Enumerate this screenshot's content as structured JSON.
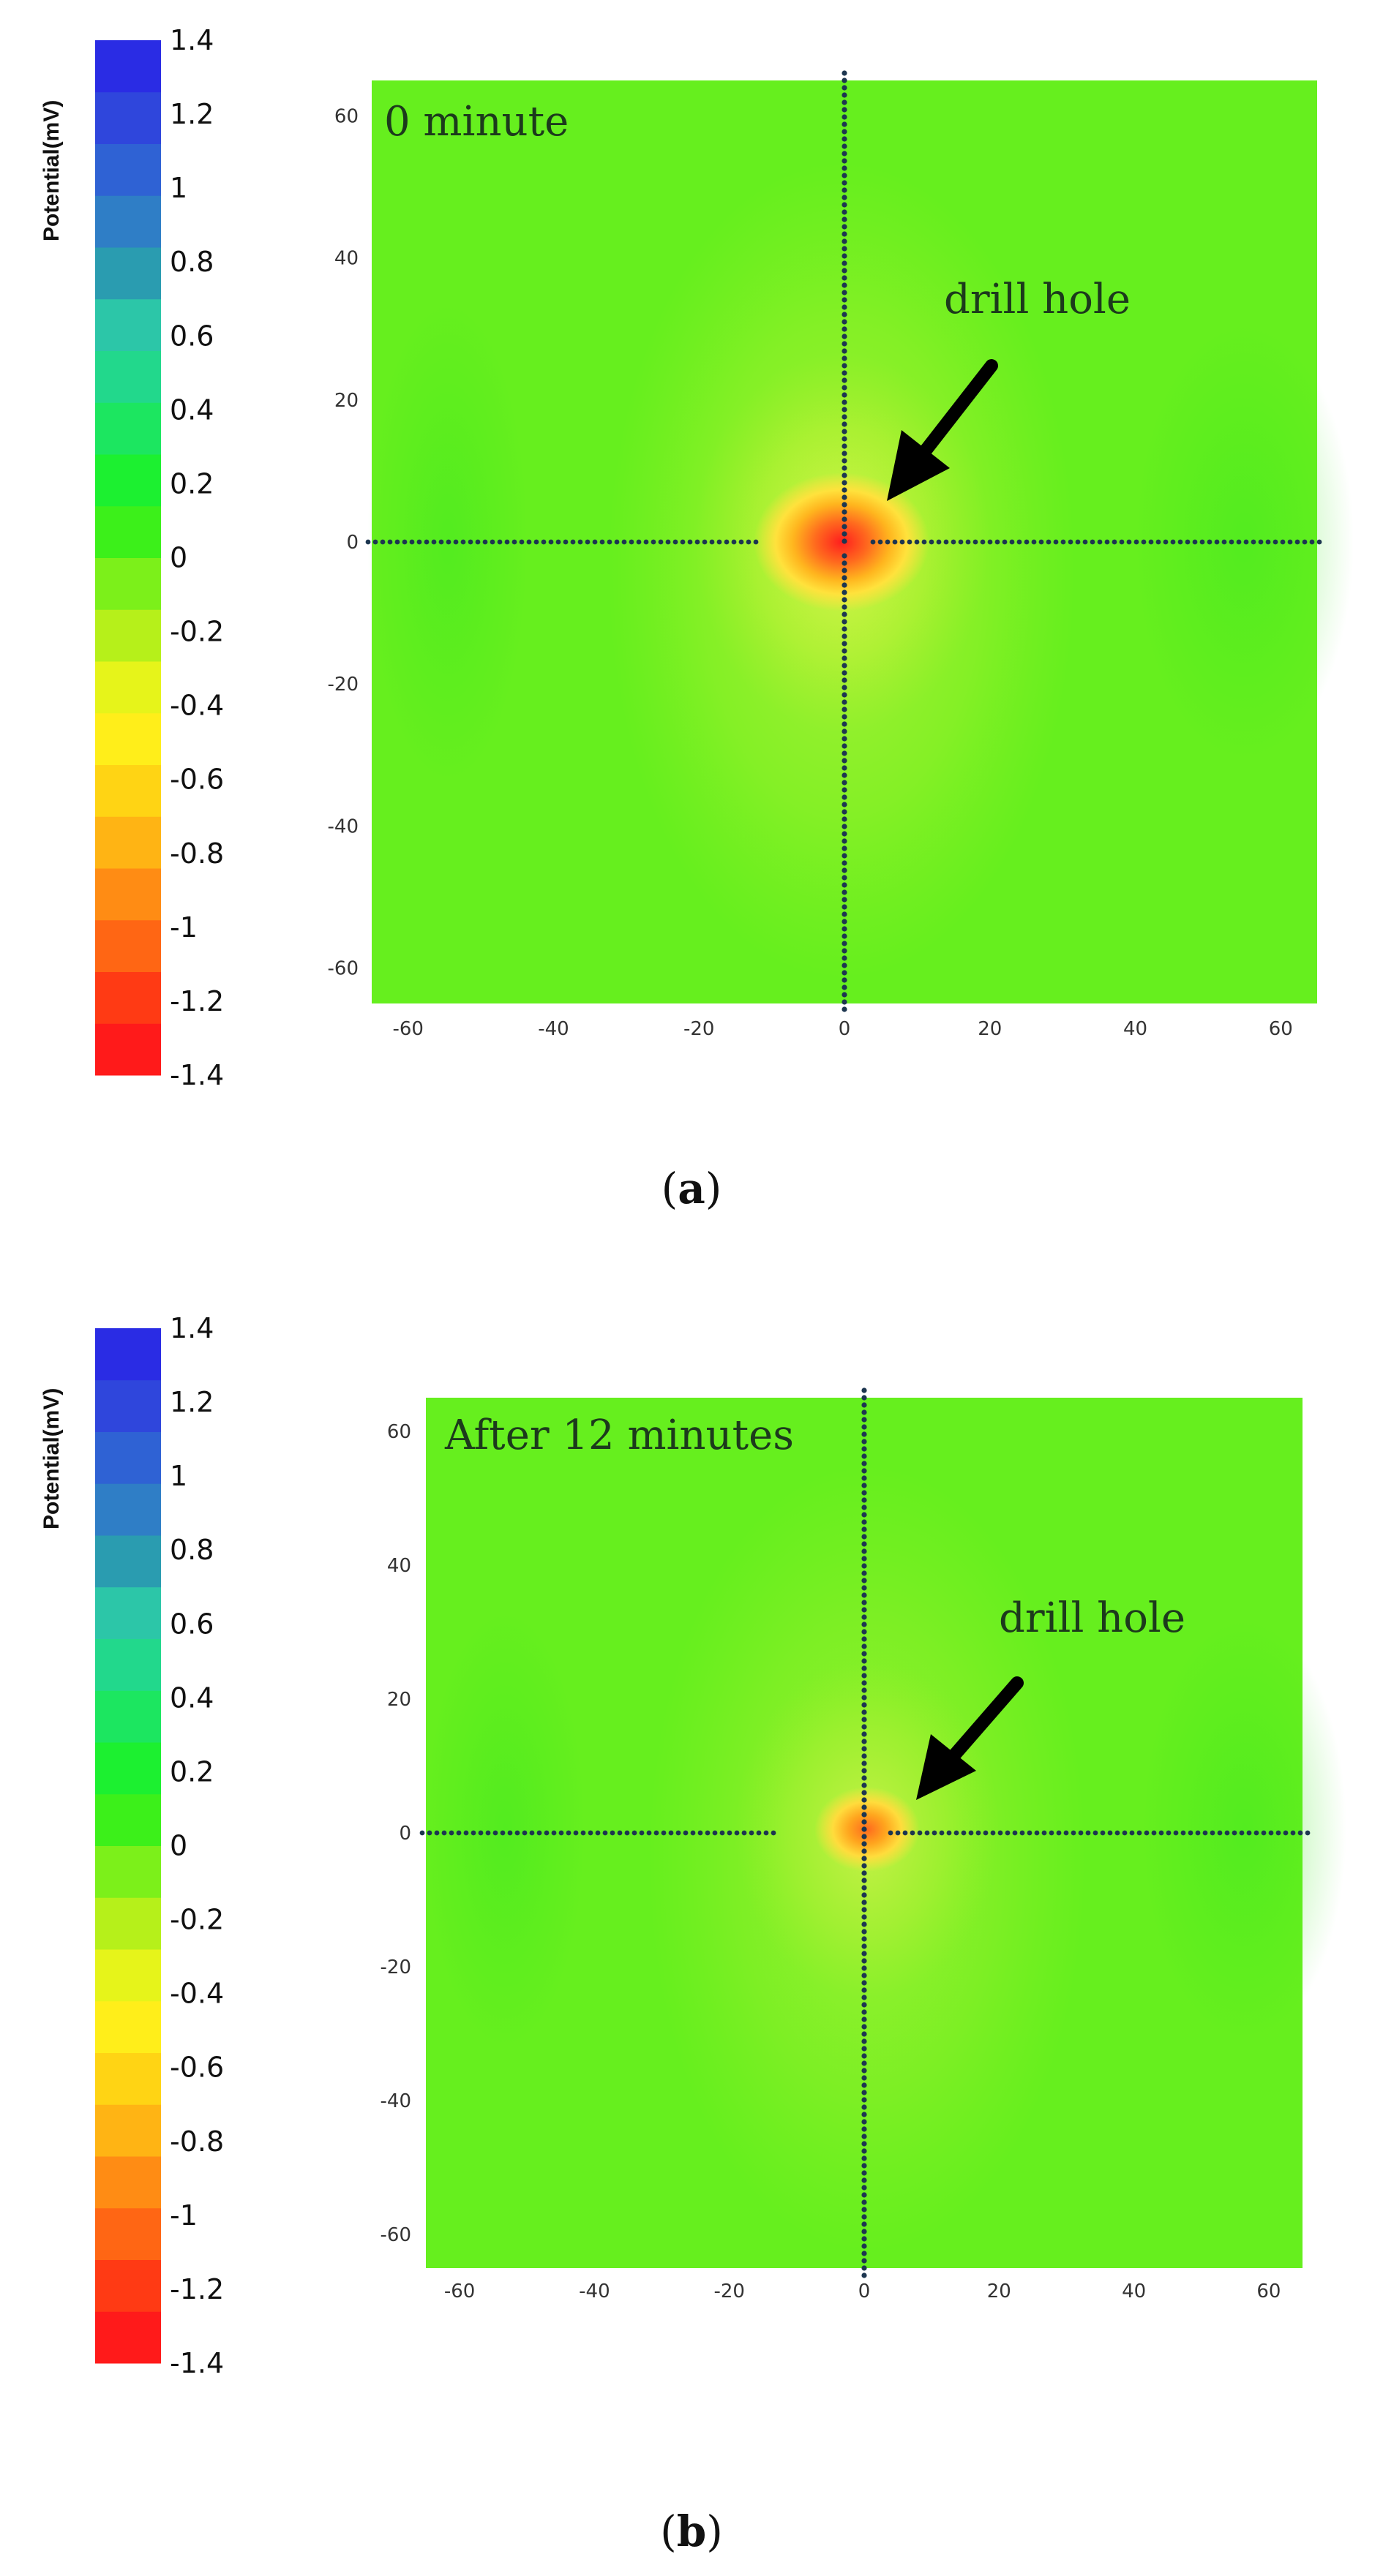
{
  "colorbar": {
    "title": "Potential(mV)",
    "ticks": [
      "1.4",
      "1.2",
      "1",
      "0.8",
      "0.6",
      "0.4",
      "0.2",
      "0",
      "-0.2",
      "-0.4",
      "-0.6",
      "-0.8",
      "-1",
      "-1.2",
      "-1.4"
    ],
    "range": [
      -1.4,
      1.4
    ],
    "colors": [
      "#ff1a1a",
      "#ff3a14",
      "#ff6614",
      "#ff8c14",
      "#ffb414",
      "#ffd414",
      "#ffee1a",
      "#e6f41a",
      "#b6f01a",
      "#7cf01a",
      "#3cf01a",
      "#1cf030",
      "#1ce660",
      "#22d88c",
      "#2cc6a8",
      "#2a9cb0",
      "#2f7ec6",
      "#2f62d4",
      "#2f46dc",
      "#2a2ce4"
    ]
  },
  "chart_data": [
    {
      "type": "heatmap",
      "panel_label": "a",
      "annotation_time": "0 minute",
      "annotation_arrow": "drill hole",
      "xlim": [
        -65,
        65
      ],
      "ylim": [
        -65,
        65
      ],
      "x_ticks": [
        "-60",
        "-40",
        "-20",
        "0",
        "20",
        "40",
        "60"
      ],
      "y_ticks": [
        "60",
        "40",
        "20",
        "0",
        "-20",
        "-40",
        "-60"
      ],
      "background_color": "#66ef1e",
      "drill_hole": {
        "x": 0,
        "y": 0,
        "min_potential_mV": -1.3
      }
    },
    {
      "type": "heatmap",
      "panel_label": "b",
      "annotation_time": "After 12 minutes",
      "annotation_arrow": "drill hole",
      "xlim": [
        -65,
        65
      ],
      "ylim": [
        -65,
        65
      ],
      "x_ticks": [
        "-60",
        "-40",
        "-20",
        "0",
        "20",
        "40",
        "60"
      ],
      "y_ticks": [
        "60",
        "40",
        "20",
        "0",
        "-20",
        "-40",
        "-60"
      ],
      "background_color": "#66ef1e",
      "drill_hole": {
        "x": 0,
        "y": 0,
        "min_potential_mV": -0.9
      }
    }
  ]
}
